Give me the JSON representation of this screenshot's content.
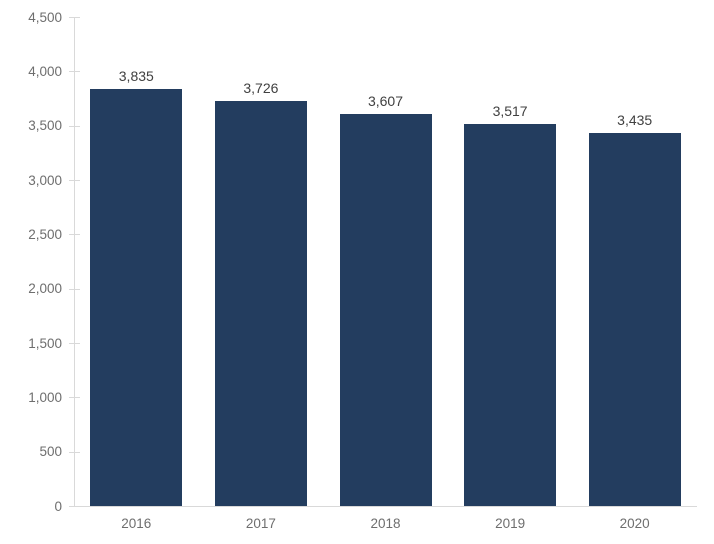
{
  "chart_data": {
    "type": "bar",
    "title": "",
    "xlabel": "",
    "ylabel": "",
    "categories": [
      "2016",
      "2017",
      "2018",
      "2019",
      "2020"
    ],
    "values": [
      3835,
      3726,
      3607,
      3517,
      3435
    ],
    "data_labels": [
      "3,835",
      "3,726",
      "3,607",
      "3,517",
      "3,435"
    ],
    "ylim": [
      0,
      4500
    ],
    "ytick_step": 500,
    "ytick_labels": [
      "0",
      "500",
      "1,000",
      "1,500",
      "2,000",
      "2,500",
      "3,000",
      "3,500",
      "4,000",
      "4,500"
    ],
    "grid": false,
    "legend": "none",
    "colors": {
      "bar": "#233d5f",
      "axis_line": "#d9d9d9",
      "tick_label": "#6e6e6e",
      "data_label": "#404040",
      "background": "#ffffff"
    }
  }
}
